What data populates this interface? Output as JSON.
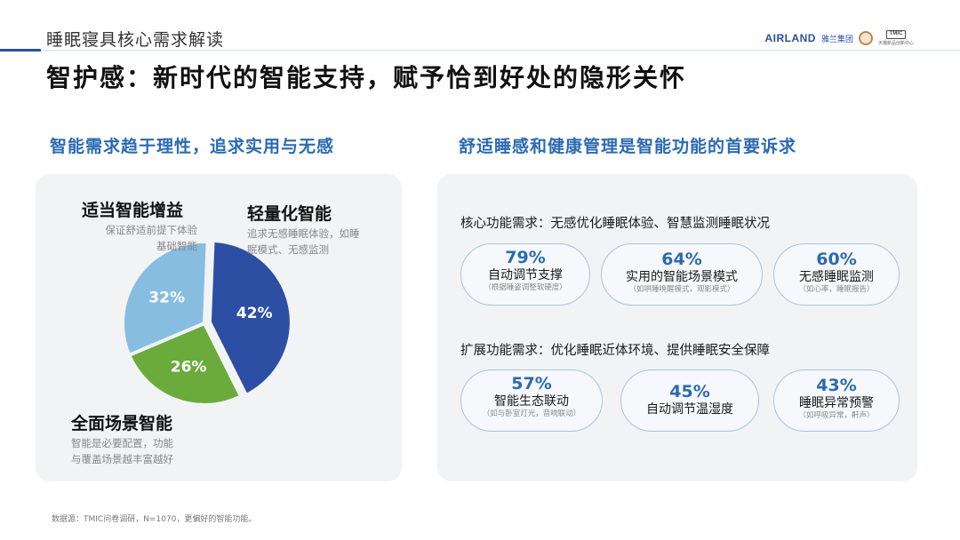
{
  "header": {
    "section_title": "睡眠寝具核心需求解读",
    "brand_name": "AIRLAND",
    "brand_cn": "雅兰集团",
    "brand_tm": "TMIC",
    "brand_tm_text": "天猫新品创新中心",
    "headline": "智护感：新时代的智能支持，赋予恰到好处的隐形关怀"
  },
  "left_panel": {
    "heading": "智能需求趋于理性，追求实用与无感",
    "segments": [
      {
        "title": "适当智能增益",
        "desc_line1": "保证舒适前提下体验",
        "desc_line2": "基础智能"
      },
      {
        "title": "轻量化智能",
        "desc_line1": "追求无感睡眠体验，如睡",
        "desc_line2": "眠模式、无感监测"
      },
      {
        "title": "全面场景智能",
        "desc_line1": "智能是必要配置，功能",
        "desc_line2": "与覆盖场景越丰富越好"
      }
    ]
  },
  "chart_data": {
    "type": "pie",
    "categories": [
      "轻量化智能",
      "全面场景智能",
      "适当智能增益"
    ],
    "values": [
      42,
      26,
      32
    ],
    "labels": [
      "42%",
      "26%",
      "32%"
    ],
    "colors": [
      "#2c4fa3",
      "#6aab3c",
      "#88bde2"
    ]
  },
  "right_panel": {
    "heading": "舒适睡感和健康管理是智能功能的首要诉求",
    "core": {
      "heading": "核心功能需求：无感优化睡眠体验、智慧监测睡眠状况",
      "items": [
        {
          "pct": "79%",
          "name": "自动调节支撑",
          "note": "（根据睡姿调整软硬度）"
        },
        {
          "pct": "64%",
          "name": "实用的智能场景模式",
          "note": "（如哄睡唤醒模式，观影模式）"
        },
        {
          "pct": "60%",
          "name": "无感睡眠监测",
          "note": "（如心率，睡眠报告）"
        }
      ]
    },
    "extended": {
      "heading": "扩展功能需求：优化睡眠近体环境、提供睡眠安全保障",
      "items": [
        {
          "pct": "57%",
          "name": "智能生态联动",
          "note": "（如与卧室灯光，音响联动）"
        },
        {
          "pct": "45%",
          "name": "自动调节温湿度",
          "note": ""
        },
        {
          "pct": "43%",
          "name": "睡眠异常预警",
          "note": "（如呼吸异常，鼾声）"
        }
      ]
    }
  },
  "footer": {
    "source": "数据源：TMIC问卷调研，N=1070，更偏好的智能功能。"
  }
}
